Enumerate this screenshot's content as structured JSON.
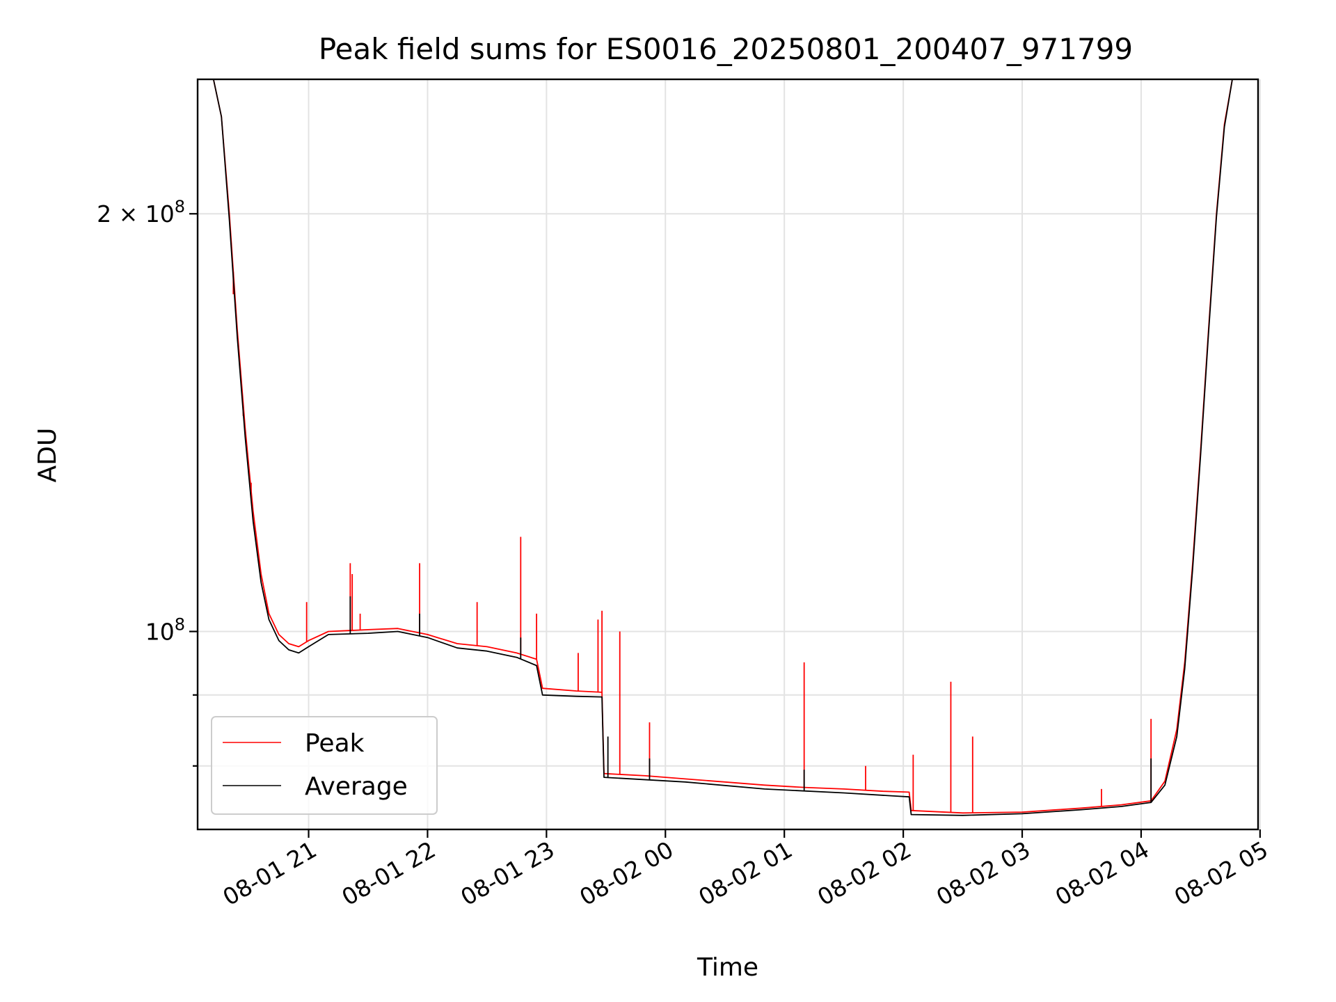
{
  "chart_data": {
    "type": "line",
    "title": "Peak field sums for ES0016_20250801_200407_971799",
    "xlabel": "Time",
    "ylabel": "ADU",
    "x_scale": "time",
    "y_scale": "log",
    "xlim": [
      "2025-08-01 20:04",
      "2025-08-02 04:59"
    ],
    "ylim": [
      72000000,
      250000000
    ],
    "x_ticks": [
      "08-01 21",
      "08-01 22",
      "08-01 23",
      "08-02 00",
      "08-02 01",
      "08-02 02",
      "08-02 03",
      "08-02 04",
      "08-02 05"
    ],
    "y_ticks": [
      {
        "value": 100000000,
        "base": "10",
        "exp": "8",
        "mult": ""
      },
      {
        "value": 200000000,
        "base": "10",
        "exp": "8",
        "mult": "2 × "
      }
    ],
    "grid": true,
    "legend_position": "lower left",
    "series": [
      {
        "name": "Peak",
        "color": "#ff0000",
        "points": [
          [
            "2025-08-01 20:04",
            250000000
          ],
          [
            "2025-08-01 20:12",
            250000000
          ],
          [
            "2025-08-01 20:16",
            235000000
          ],
          [
            "2025-08-01 20:20",
            200000000
          ],
          [
            "2025-08-01 20:24",
            165000000
          ],
          [
            "2025-08-01 20:28",
            140000000
          ],
          [
            "2025-08-01 20:32",
            122000000
          ],
          [
            "2025-08-01 20:36",
            110000000
          ],
          [
            "2025-08-01 20:40",
            103000000
          ],
          [
            "2025-08-01 20:45",
            99500000
          ],
          [
            "2025-08-01 20:50",
            98000000
          ],
          [
            "2025-08-01 20:55",
            97500000
          ],
          [
            "2025-08-01 21:00",
            98500000
          ],
          [
            "2025-08-01 21:10",
            100000000
          ],
          [
            "2025-08-01 21:30",
            100300000
          ],
          [
            "2025-08-01 21:45",
            100500000
          ],
          [
            "2025-08-01 22:00",
            99500000
          ],
          [
            "2025-08-01 22:15",
            98000000
          ],
          [
            "2025-08-01 22:30",
            97500000
          ],
          [
            "2025-08-01 22:45",
            96500000
          ],
          [
            "2025-08-01 22:55",
            95500000
          ],
          [
            "2025-08-01 22:58",
            91000000
          ],
          [
            "2025-08-01 23:15",
            90600000
          ],
          [
            "2025-08-01 23:28",
            90400000
          ],
          [
            "2025-08-01 23:29",
            79000000
          ],
          [
            "2025-08-01 23:50",
            78700000
          ],
          [
            "2025-08-02 00:10",
            78300000
          ],
          [
            "2025-08-02 00:30",
            77900000
          ],
          [
            "2025-08-02 00:50",
            77500000
          ],
          [
            "2025-08-02 01:10",
            77200000
          ],
          [
            "2025-08-02 01:30",
            77000000
          ],
          [
            "2025-08-02 01:50",
            76700000
          ],
          [
            "2025-08-02 02:03",
            76600000
          ],
          [
            "2025-08-02 02:04",
            74300000
          ],
          [
            "2025-08-02 02:30",
            74000000
          ],
          [
            "2025-08-02 03:00",
            74100000
          ],
          [
            "2025-08-02 03:30",
            74600000
          ],
          [
            "2025-08-02 03:50",
            75000000
          ],
          [
            "2025-08-02 04:05",
            75500000
          ],
          [
            "2025-08-02 04:12",
            78000000
          ],
          [
            "2025-08-02 04:18",
            85000000
          ],
          [
            "2025-08-02 04:22",
            95000000
          ],
          [
            "2025-08-02 04:26",
            112000000
          ],
          [
            "2025-08-02 04:30",
            135000000
          ],
          [
            "2025-08-02 04:34",
            165000000
          ],
          [
            "2025-08-02 04:38",
            200000000
          ],
          [
            "2025-08-02 04:42",
            232000000
          ],
          [
            "2025-08-02 04:46",
            250000000
          ],
          [
            "2025-08-02 04:59",
            250000000
          ]
        ],
        "spikes": [
          [
            "2025-08-01 20:22",
            175000000
          ],
          [
            "2025-08-01 20:27",
            143000000
          ],
          [
            "2025-08-01 20:31",
            128000000
          ],
          [
            "2025-08-01 20:59",
            105000000
          ],
          [
            "2025-08-01 21:21",
            112000000
          ],
          [
            "2025-08-01 21:22",
            110000000
          ],
          [
            "2025-08-01 21:26",
            103000000
          ],
          [
            "2025-08-01 21:56",
            112000000
          ],
          [
            "2025-08-01 22:25",
            105000000
          ],
          [
            "2025-08-01 22:47",
            117000000
          ],
          [
            "2025-08-01 22:55",
            103000000
          ],
          [
            "2025-08-01 23:16",
            96500000
          ],
          [
            "2025-08-01 23:26",
            102000000
          ],
          [
            "2025-08-01 23:28",
            103500000
          ],
          [
            "2025-08-01 23:37",
            100000000
          ],
          [
            "2025-08-01 23:52",
            86000000
          ],
          [
            "2025-08-02 01:10",
            95000000
          ],
          [
            "2025-08-02 01:41",
            80000000
          ],
          [
            "2025-08-02 02:05",
            81500000
          ],
          [
            "2025-08-02 02:24",
            92000000
          ],
          [
            "2025-08-02 02:35",
            84000000
          ],
          [
            "2025-08-02 03:40",
            77000000
          ],
          [
            "2025-08-02 04:05",
            86500000
          ]
        ]
      },
      {
        "name": "Average",
        "color": "#000000",
        "points": [
          [
            "2025-08-01 20:04",
            250000000
          ],
          [
            "2025-08-01 20:12",
            250000000
          ],
          [
            "2025-08-01 20:16",
            235000000
          ],
          [
            "2025-08-01 20:20",
            198000000
          ],
          [
            "2025-08-01 20:24",
            163000000
          ],
          [
            "2025-08-01 20:28",
            138000000
          ],
          [
            "2025-08-01 20:32",
            120000000
          ],
          [
            "2025-08-01 20:36",
            108500000
          ],
          [
            "2025-08-01 20:40",
            102000000
          ],
          [
            "2025-08-01 20:45",
            98500000
          ],
          [
            "2025-08-01 20:50",
            97000000
          ],
          [
            "2025-08-01 20:55",
            96500000
          ],
          [
            "2025-08-01 21:00",
            97500000
          ],
          [
            "2025-08-01 21:10",
            99500000
          ],
          [
            "2025-08-01 21:30",
            99700000
          ],
          [
            "2025-08-01 21:45",
            100000000
          ],
          [
            "2025-08-01 22:00",
            99000000
          ],
          [
            "2025-08-01 22:15",
            97300000
          ],
          [
            "2025-08-01 22:30",
            96800000
          ],
          [
            "2025-08-01 22:45",
            95800000
          ],
          [
            "2025-08-01 22:55",
            94500000
          ],
          [
            "2025-08-01 22:58",
            90000000
          ],
          [
            "2025-08-01 23:15",
            89800000
          ],
          [
            "2025-08-01 23:28",
            89700000
          ],
          [
            "2025-08-01 23:29",
            78500000
          ],
          [
            "2025-08-02 00:10",
            77900000
          ],
          [
            "2025-08-02 00:50",
            77000000
          ],
          [
            "2025-08-02 01:30",
            76500000
          ],
          [
            "2025-08-02 02:03",
            76000000
          ],
          [
            "2025-08-02 02:04",
            73800000
          ],
          [
            "2025-08-02 02:30",
            73700000
          ],
          [
            "2025-08-02 03:00",
            73900000
          ],
          [
            "2025-08-02 03:30",
            74400000
          ],
          [
            "2025-08-02 03:50",
            74800000
          ],
          [
            "2025-08-02 04:05",
            75300000
          ],
          [
            "2025-08-02 04:12",
            77500000
          ],
          [
            "2025-08-02 04:18",
            84000000
          ],
          [
            "2025-08-02 04:22",
            94000000
          ],
          [
            "2025-08-02 04:26",
            111000000
          ],
          [
            "2025-08-02 04:30",
            134000000
          ],
          [
            "2025-08-02 04:34",
            164000000
          ],
          [
            "2025-08-02 04:38",
            199000000
          ],
          [
            "2025-08-02 04:42",
            231000000
          ],
          [
            "2025-08-02 04:46",
            250000000
          ],
          [
            "2025-08-02 04:59",
            250000000
          ]
        ],
        "spikes": [
          [
            "2025-08-01 21:21",
            106000000
          ],
          [
            "2025-08-01 21:56",
            103000000
          ],
          [
            "2025-08-01 22:47",
            99000000
          ],
          [
            "2025-08-01 23:31",
            84000000
          ],
          [
            "2025-08-01 23:52",
            81000000
          ],
          [
            "2025-08-02 01:10",
            79500000
          ],
          [
            "2025-08-02 04:05",
            81000000
          ]
        ]
      }
    ]
  }
}
